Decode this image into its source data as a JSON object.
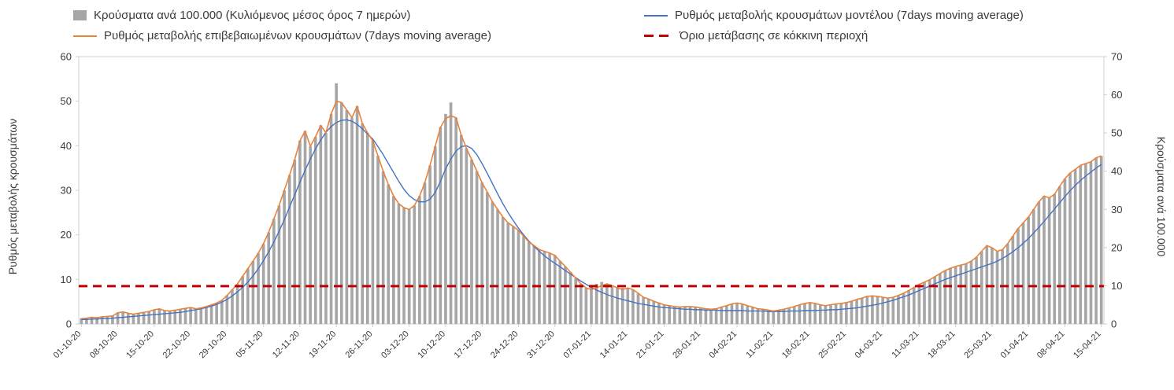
{
  "axes": {
    "left_title": "Ρυθμός μεταβολής κρουσμάτων",
    "right_title": "Κρούσματα ανά 100.000",
    "left_ticks": [
      0,
      10,
      20,
      30,
      40,
      50,
      60
    ],
    "right_ticks": [
      0,
      10,
      20,
      30,
      40,
      50,
      60,
      70
    ],
    "left_range": [
      0,
      60
    ],
    "right_range": [
      0,
      70
    ]
  },
  "colors": {
    "bars": "#a6a6a6",
    "model_line": "#4472c4",
    "confirmed_line": "#e8823c",
    "threshold_line": "#c00000",
    "axis_line": "#d0d0d0",
    "text": "#3a3a3a"
  },
  "chart_data": {
    "type": "bar+line",
    "legend_position": "top",
    "grid": false,
    "n_days": 197,
    "tick_interval_days": 7,
    "x_tick_labels": [
      "01-10-20",
      "08-10-20",
      "15-10-20",
      "22-10-20",
      "29-10-20",
      "05-11-20",
      "12-11-20",
      "19-11-20",
      "26-11-20",
      "03-12-20",
      "10-12-20",
      "17-12-20",
      "24-12-20",
      "31-12-20",
      "07-01-21",
      "14-01-21",
      "21-01-21",
      "28-01-21",
      "04-02-21",
      "11-02-21",
      "18-02-21",
      "25-02-21",
      "04-03-21",
      "11-03-21",
      "18-03-21",
      "25-03-21",
      "01-04-21",
      "08-04-21",
      "15-04-21"
    ],
    "ylim_left": [
      0,
      60
    ],
    "ylim_right": [
      0,
      70
    ],
    "series": [
      {
        "name": "Κρούσματα ανά 100.000 (Κυλιόμενος μέσος όρος 7 ημερών)",
        "type": "bar",
        "axis": "right",
        "values": [
          1.5,
          1.6,
          1.8,
          1.7,
          1.9,
          2.0,
          2.1,
          3.0,
          3.2,
          2.8,
          2.6,
          2.9,
          3.1,
          3.3,
          3.8,
          4.0,
          3.6,
          3.4,
          3.7,
          3.9,
          4.1,
          4.3,
          4.0,
          4.2,
          4.6,
          5.0,
          5.5,
          6.2,
          7.5,
          9.0,
          10.5,
          12.5,
          14.5,
          16.5,
          18.5,
          21.0,
          24.0,
          27.5,
          31.0,
          35.0,
          39.0,
          43.0,
          48.0,
          50.5,
          46.5,
          49.0,
          52.0,
          50.0,
          55.0,
          63.0,
          58.0,
          56.0,
          54.0,
          57.0,
          52.5,
          50.0,
          48.0,
          44.0,
          40.0,
          36.5,
          33.5,
          31.5,
          30.5,
          30.0,
          31.0,
          33.5,
          37.0,
          41.5,
          46.5,
          51.5,
          55.0,
          58.0,
          54.0,
          49.5,
          46.0,
          43.0,
          40.0,
          37.0,
          34.5,
          32.0,
          30.0,
          28.0,
          26.5,
          25.5,
          24.5,
          23.0,
          21.5,
          20.5,
          19.5,
          19.0,
          18.5,
          18.0,
          16.5,
          15.0,
          13.5,
          12.0,
          10.5,
          9.5,
          10.0,
          10.5,
          11.0,
          10.5,
          10.0,
          9.5,
          9.5,
          9.5,
          9.0,
          8.0,
          7.0,
          6.5,
          6.0,
          5.5,
          5.0,
          4.8,
          4.6,
          4.4,
          4.5,
          4.6,
          4.4,
          4.2,
          4.0,
          3.8,
          4.0,
          4.4,
          4.8,
          5.2,
          5.5,
          5.2,
          4.8,
          4.4,
          4.0,
          3.8,
          3.6,
          3.4,
          3.6,
          3.8,
          4.2,
          4.6,
          5.0,
          5.4,
          5.6,
          5.4,
          5.0,
          4.8,
          5.0,
          5.2,
          5.4,
          5.6,
          6.0,
          6.4,
          6.8,
          7.2,
          7.4,
          7.2,
          7.0,
          6.8,
          7.0,
          7.5,
          8.0,
          8.8,
          9.6,
          10.4,
          11.0,
          11.6,
          12.4,
          13.2,
          14.0,
          14.6,
          15.0,
          15.4,
          15.8,
          16.5,
          17.5,
          19.0,
          20.5,
          20.0,
          19.0,
          19.5,
          21.0,
          23.0,
          25.0,
          26.5,
          28.0,
          30.0,
          32.0,
          33.5,
          33.0,
          34.0,
          36.0,
          38.0,
          39.5,
          40.5,
          41.5,
          42.0,
          42.5,
          43.5,
          44.0
        ]
      },
      {
        "name": "Ρυθμός μεταβολής κρουσμάτων μοντέλου (7days moving average)",
        "type": "line",
        "axis": "left",
        "values": [
          1.0,
          1.0,
          1.1,
          1.1,
          1.2,
          1.2,
          1.3,
          1.4,
          1.5,
          1.6,
          1.7,
          1.8,
          1.9,
          2.0,
          2.1,
          2.2,
          2.3,
          2.4,
          2.5,
          2.6,
          2.8,
          3.0,
          3.2,
          3.4,
          3.7,
          4.0,
          4.4,
          4.9,
          5.5,
          6.3,
          7.2,
          8.2,
          9.4,
          10.8,
          12.4,
          14.2,
          16.2,
          18.4,
          20.8,
          23.4,
          26.2,
          29.0,
          31.8,
          34.5,
          37.0,
          39.3,
          41.3,
          43.0,
          44.3,
          45.2,
          45.7,
          45.8,
          45.5,
          44.8,
          43.8,
          42.6,
          41.5,
          39.8,
          38.0,
          36.0,
          34.0,
          32.0,
          30.2,
          28.8,
          27.9,
          27.4,
          27.4,
          28.0,
          29.5,
          32.0,
          34.8,
          37.0,
          38.8,
          39.8,
          40.0,
          39.4,
          38.0,
          36.0,
          33.8,
          31.5,
          29.2,
          27.0,
          25.0,
          23.2,
          21.5,
          20.0,
          18.6,
          17.4,
          16.3,
          15.3,
          14.4,
          13.6,
          12.8,
          12.0,
          11.2,
          10.4,
          9.6,
          8.9,
          8.2,
          7.6,
          7.1,
          6.6,
          6.2,
          5.8,
          5.5,
          5.2,
          4.9,
          4.6,
          4.4,
          4.2,
          4.0,
          3.8,
          3.7,
          3.6,
          3.5,
          3.4,
          3.3,
          3.3,
          3.2,
          3.2,
          3.1,
          3.1,
          3.1,
          3.0,
          3.0,
          3.0,
          3.0,
          3.0,
          2.9,
          2.9,
          2.9,
          2.9,
          2.8,
          2.8,
          2.8,
          2.8,
          2.9,
          2.9,
          2.9,
          3.0,
          3.0,
          3.0,
          3.1,
          3.1,
          3.2,
          3.2,
          3.3,
          3.4,
          3.5,
          3.6,
          3.8,
          4.0,
          4.2,
          4.4,
          4.7,
          5.0,
          5.3,
          5.7,
          6.1,
          6.5,
          7.0,
          7.5,
          8.0,
          8.5,
          9.0,
          9.5,
          10.0,
          10.4,
          10.8,
          11.2,
          11.6,
          12.0,
          12.4,
          12.8,
          13.2,
          13.6,
          14.1,
          14.7,
          15.4,
          16.2,
          17.1,
          18.1,
          19.2,
          20.4,
          21.7,
          23.0,
          24.4,
          25.8,
          27.2,
          28.6,
          29.9,
          31.1,
          32.2,
          33.2,
          34.1,
          35.0,
          35.8
        ]
      },
      {
        "name": "Ρυθμός μεταβολής επιβεβαιωμένων κρουσμάτων (7days moving average)",
        "type": "line",
        "axis": "left",
        "values": [
          1.2,
          1.3,
          1.5,
          1.4,
          1.6,
          1.7,
          1.8,
          2.5,
          2.7,
          2.4,
          2.2,
          2.4,
          2.6,
          2.8,
          3.2,
          3.4,
          3.0,
          2.9,
          3.1,
          3.3,
          3.5,
          3.7,
          3.4,
          3.6,
          3.9,
          4.3,
          4.7,
          5.3,
          6.4,
          7.7,
          9.0,
          10.7,
          12.4,
          14.1,
          15.9,
          18.0,
          20.6,
          23.6,
          26.6,
          30.0,
          33.4,
          36.9,
          41.1,
          43.3,
          39.9,
          42.0,
          44.6,
          42.9,
          47.1,
          50.0,
          49.7,
          48.0,
          46.3,
          48.9,
          45.0,
          42.9,
          41.1,
          37.7,
          34.3,
          31.3,
          28.7,
          27.0,
          26.1,
          25.7,
          26.6,
          28.7,
          31.7,
          35.6,
          39.9,
          44.1,
          46.1,
          46.7,
          46.3,
          42.4,
          39.4,
          36.9,
          34.3,
          31.7,
          29.6,
          27.4,
          25.7,
          24.0,
          22.7,
          21.9,
          21.0,
          19.7,
          18.4,
          17.6,
          16.7,
          16.3,
          15.9,
          15.4,
          14.1,
          12.9,
          11.6,
          10.3,
          9.0,
          8.1,
          7.7,
          8.1,
          8.6,
          9.0,
          8.6,
          8.1,
          7.7,
          8.1,
          7.7,
          6.9,
          6.0,
          5.6,
          5.1,
          4.7,
          4.3,
          4.1,
          3.9,
          3.8,
          3.9,
          3.9,
          3.8,
          3.6,
          3.4,
          3.3,
          3.4,
          3.8,
          4.1,
          4.5,
          4.7,
          4.5,
          4.1,
          3.8,
          3.4,
          3.3,
          3.1,
          2.9,
          3.1,
          3.3,
          3.6,
          3.9,
          4.3,
          4.6,
          4.8,
          4.6,
          4.3,
          4.1,
          4.3,
          4.5,
          4.6,
          4.8,
          5.1,
          5.5,
          5.8,
          6.2,
          6.3,
          6.2,
          6.0,
          5.8,
          6.0,
          6.4,
          6.9,
          7.5,
          8.2,
          8.9,
          9.4,
          9.9,
          10.6,
          11.3,
          12.0,
          12.5,
          12.9,
          13.2,
          13.5,
          14.1,
          15.0,
          16.3,
          17.6,
          17.1,
          16.3,
          16.7,
          18.0,
          19.7,
          21.4,
          22.7,
          24.0,
          25.7,
          27.4,
          28.7,
          28.3,
          29.1,
          30.9,
          32.6,
          33.9,
          34.7,
          35.6,
          36.0,
          36.4,
          37.3,
          37.7
        ]
      },
      {
        "name": "Όριο μετάβασης σε κόκκινη περιοχή",
        "type": "hline",
        "axis": "left",
        "value": 8.5
      }
    ]
  }
}
